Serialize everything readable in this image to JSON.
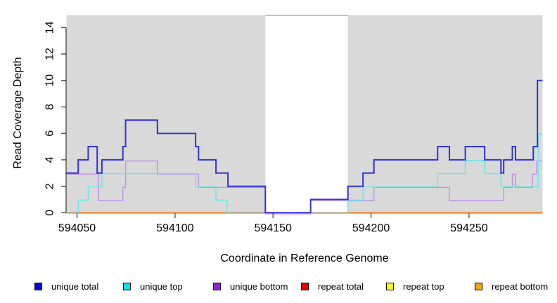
{
  "figure": {
    "background": "#FFFFFF"
  },
  "plot": {
    "bg_color": "#D9D9D9",
    "axis_color": "#404040",
    "gap_band": {
      "x_start": 594146.1,
      "x_end": 594188.2,
      "fill": "#FFFFFF",
      "top_border_color": "#A6A6A6"
    },
    "zero_line_artifact_color": "#9CD3A1",
    "zero_line_artifact_segments": [
      [
        594044.6,
        594046.0
      ],
      [
        594126.5,
        594146.1
      ],
      [
        594169.2,
        594188.2
      ]
    ]
  },
  "chart_data": {
    "type": "line",
    "style": "step",
    "title": "",
    "xlabel": "Coordinate in Reference Genome",
    "ylabel": "Read Coverage Depth",
    "xlim": [
      594044.6,
      594287.4
    ],
    "ylim": [
      0,
      14.9
    ],
    "x_ticks": [
      594050,
      594100,
      594150,
      594200,
      594250
    ],
    "y_ticks": [
      0,
      2,
      4,
      6,
      8,
      10,
      12,
      14
    ],
    "grid": false,
    "legend_position": "bottom",
    "series": [
      {
        "name": "unique total",
        "color": "#3232D8",
        "legend_color": "#0000EE",
        "width": 2,
        "offset": 0,
        "steps": [
          [
            594044.6,
            3
          ],
          [
            594050.6,
            4
          ],
          [
            594055.7,
            5
          ],
          [
            594060.3,
            3
          ],
          [
            594062.7,
            4
          ],
          [
            594073.4,
            5
          ],
          [
            594074.8,
            7
          ],
          [
            594091,
            6
          ],
          [
            594110.5,
            5
          ],
          [
            594112,
            4
          ],
          [
            594120.9,
            3
          ],
          [
            594127,
            2
          ],
          [
            594146.1,
            0
          ],
          [
            594169.2,
            1
          ],
          [
            594188.2,
            2
          ],
          [
            594195.9,
            3
          ],
          [
            594201.5,
            4
          ],
          [
            594234,
            5
          ],
          [
            594240,
            4
          ],
          [
            594248.1,
            5
          ],
          [
            594258,
            4
          ],
          [
            594266.3,
            3
          ],
          [
            594267.7,
            4
          ],
          [
            594272.1,
            5
          ],
          [
            594273.7,
            4
          ],
          [
            594282.8,
            5
          ],
          [
            594284.9,
            10
          ]
        ]
      },
      {
        "name": "unique top",
        "color": "#6EE4E6",
        "legend_color": "#00E5E5",
        "width": 1.5,
        "offset": 0.8,
        "steps": [
          [
            594044.6,
            0
          ],
          [
            594050.6,
            1
          ],
          [
            594055.7,
            2
          ],
          [
            594062.7,
            3
          ],
          [
            594110.5,
            2
          ],
          [
            594120.9,
            1
          ],
          [
            594126.5,
            0
          ],
          [
            594188.2,
            1
          ],
          [
            594195.9,
            2
          ],
          [
            594234,
            3
          ],
          [
            594248.1,
            4
          ],
          [
            594258,
            3
          ],
          [
            594266.3,
            2
          ],
          [
            594285.3,
            6
          ]
        ]
      },
      {
        "name": "unique bottom",
        "color": "#BF94E4",
        "legend_color": "#9A1FD8",
        "width": 1.5,
        "offset": 1.6,
        "steps": [
          [
            594044.6,
            3
          ],
          [
            594061,
            1
          ],
          [
            594073.4,
            2
          ],
          [
            594074.8,
            4
          ],
          [
            594091,
            3
          ],
          [
            594112,
            2
          ],
          [
            594146.1,
            0
          ],
          [
            594169.2,
            1
          ],
          [
            594201.5,
            2
          ],
          [
            594240,
            1
          ],
          [
            594267.7,
            2
          ],
          [
            594272.1,
            3
          ],
          [
            594273.7,
            2
          ],
          [
            594282.3,
            3
          ],
          [
            594284.5,
            4
          ]
        ]
      },
      {
        "name": "repeat total",
        "color": "#DD0000",
        "legend_color": "#EE0000",
        "width": 1.5,
        "offset": 0,
        "steps": [
          [
            594044.6,
            0
          ]
        ]
      },
      {
        "name": "repeat top",
        "color": "#F5E800",
        "legend_color": "#FFFF00",
        "width": 1.5,
        "offset": 0.3,
        "steps": [
          [
            594044.6,
            0
          ]
        ]
      },
      {
        "name": "repeat bottom",
        "color": "#FFA018",
        "legend_color": "#FFA500",
        "width": 1.7,
        "offset": 0.6,
        "steps": [
          [
            594044.6,
            0
          ]
        ]
      }
    ]
  },
  "legend": {
    "items": [
      {
        "label": "unique total",
        "color": "#0000EE"
      },
      {
        "label": "unique top",
        "color": "#00E5E5"
      },
      {
        "label": "unique bottom",
        "color": "#9A1FD8"
      },
      {
        "label": "repeat total",
        "color": "#EE0000"
      },
      {
        "label": "repeat top",
        "color": "#FFFF00"
      },
      {
        "label": "repeat bottom",
        "color": "#FFA500"
      }
    ]
  }
}
